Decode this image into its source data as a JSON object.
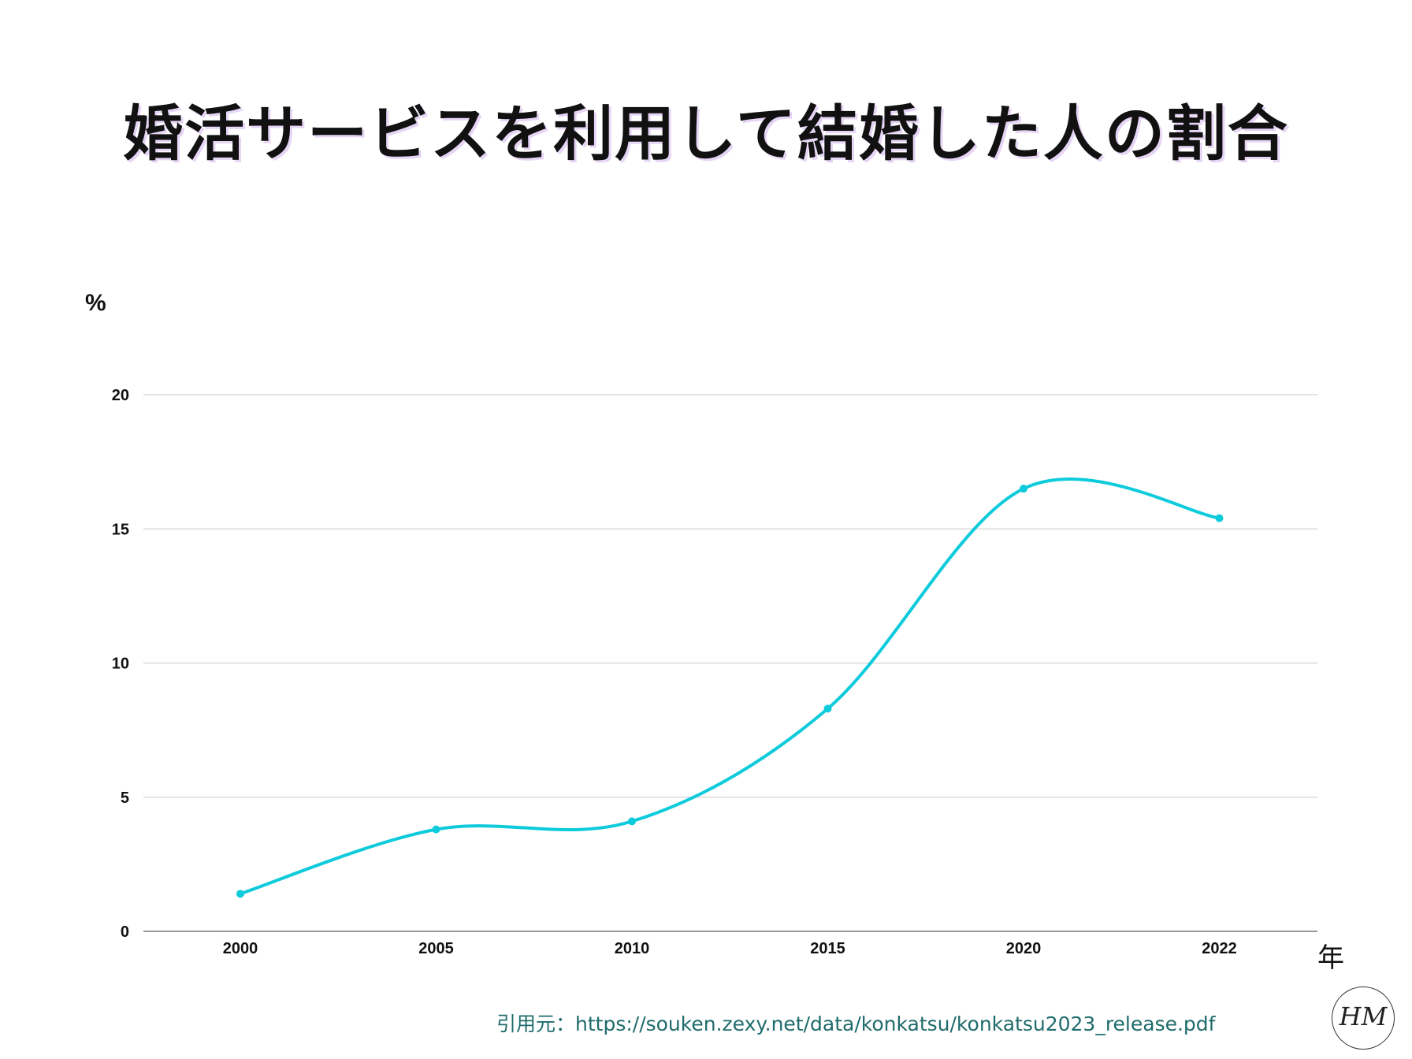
{
  "title": "婚活サービスを利用して結婚した人の割合",
  "y_unit": "%",
  "x_unit": "年",
  "source": "引用元：https://souken.zexy.net/data/konkatsu/konkatsu2023_release.pdf",
  "logo": {
    "text": "HM",
    "icon": "hm-logo-icon"
  },
  "colors": {
    "line": "#0ecbdc",
    "grid": "#d4d4d4",
    "axis": "#777777",
    "text": "#111111"
  },
  "chart_data": {
    "type": "line",
    "title": "婚活サービスを利用して結婚した人の割合",
    "xlabel": "年",
    "ylabel": "%",
    "categories": [
      "2000",
      "2005",
      "2010",
      "2015",
      "2020",
      "2022"
    ],
    "series": [
      {
        "values": [
          1.4,
          3.8,
          4.1,
          8.3,
          16.5,
          15.4
        ]
      }
    ],
    "yticks": [
      0,
      5,
      10,
      15,
      20
    ],
    "ylim": [
      0,
      20
    ],
    "grid": true,
    "legend": "none"
  }
}
